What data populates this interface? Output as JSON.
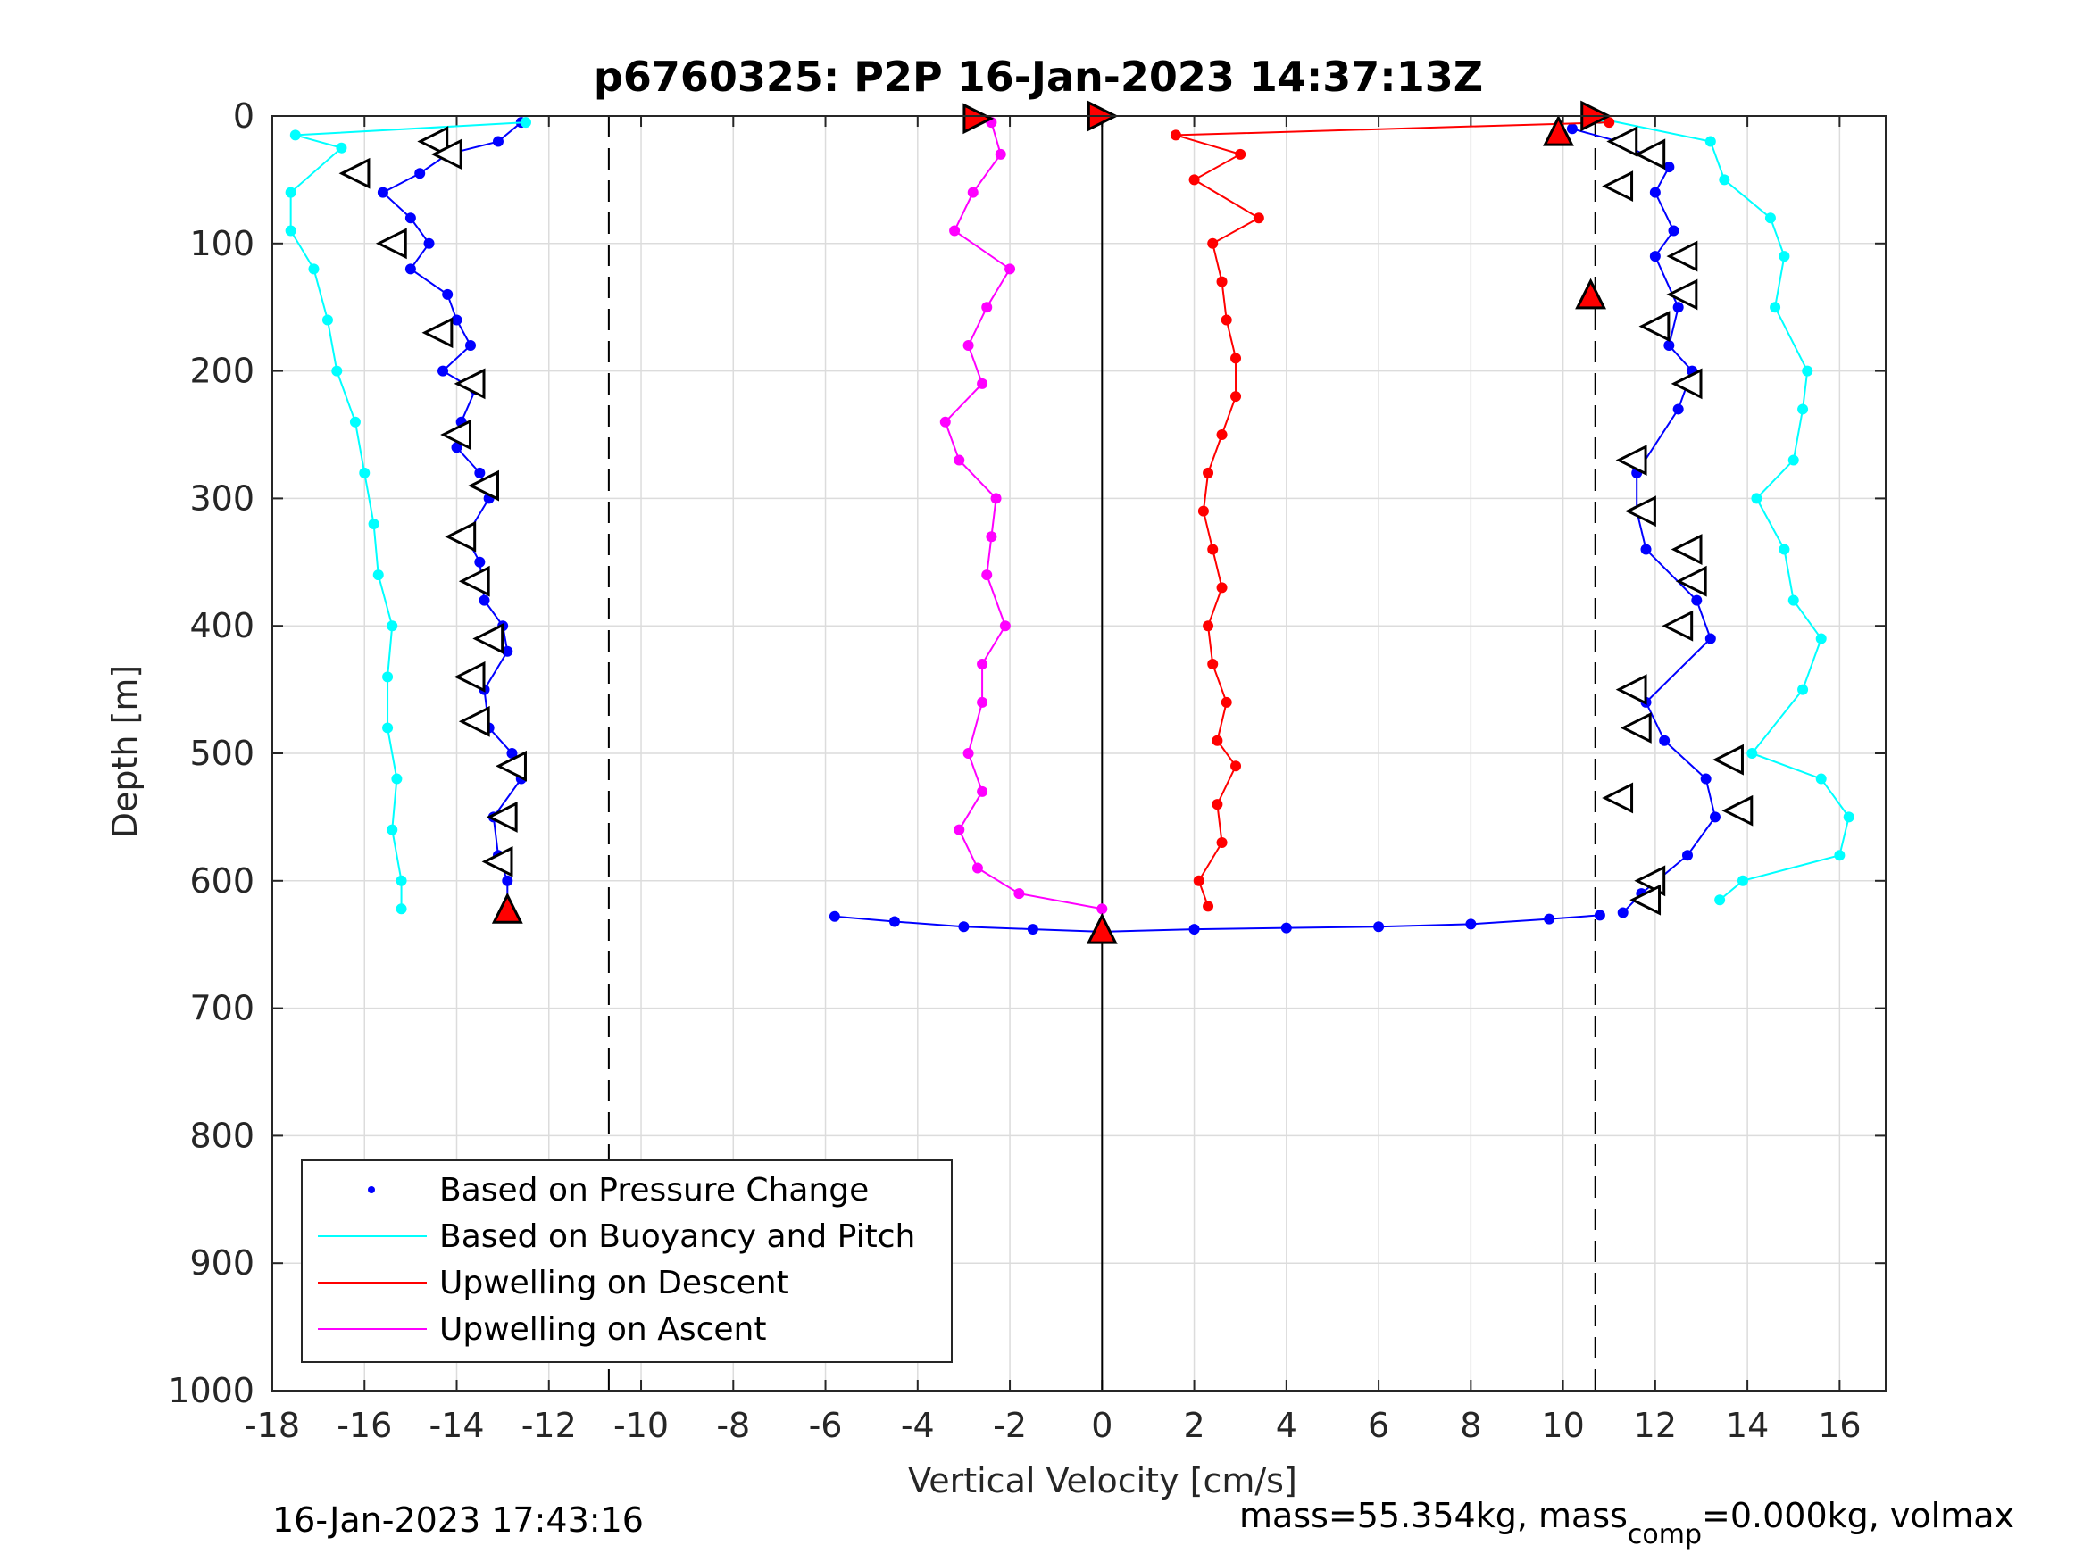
{
  "figure": {
    "title": "p6760325: P2P 16-Jan-2023 14:37:13Z",
    "footer_left": "16-Jan-2023 17:43:16",
    "footer_right": {
      "part1": "mass=55.354kg, mass",
      "subscript": "comp",
      "part2": "=0.000kg, volmax"
    }
  },
  "chart_data": {
    "type": "scatter",
    "title": "p6760325: P2P 16-Jan-2023 14:37:13Z",
    "xlabel": "Vertical Velocity [cm/s]",
    "ylabel": "Depth [m]",
    "xlim": [
      -18,
      17
    ],
    "ylim": [
      0,
      1000
    ],
    "y_reversed": true,
    "grid": true,
    "xticks": [
      -18,
      -16,
      -14,
      -12,
      -10,
      -8,
      -6,
      -4,
      -2,
      0,
      2,
      4,
      6,
      8,
      10,
      12,
      14,
      16
    ],
    "yticks": [
      0,
      100,
      200,
      300,
      400,
      500,
      600,
      700,
      800,
      900,
      1000
    ],
    "dashed_vlines": [
      -10.7,
      10.7
    ],
    "solid_vlines": [
      0
    ],
    "legend_position": "bottom-left",
    "legend": [
      {
        "label": "Based on Pressure Change",
        "color": "#0000ff",
        "marker": "dot"
      },
      {
        "label": "Based on Buoyancy and Pitch",
        "color": "#00ffff",
        "marker": "line"
      },
      {
        "label": "Upwelling on Descent",
        "color": "#ff0000",
        "marker": "line"
      },
      {
        "label": "Upwelling on Ascent",
        "color": "#ff00ff",
        "marker": "line"
      }
    ],
    "series": [
      {
        "name": "Based on Pressure Change (descent)",
        "color": "#0000ff",
        "points": [
          [
            -12.6,
            5
          ],
          [
            -13.1,
            20
          ],
          [
            -14.2,
            30
          ],
          [
            -14.8,
            45
          ],
          [
            -15.6,
            60
          ],
          [
            -15.0,
            80
          ],
          [
            -14.6,
            100
          ],
          [
            -15.0,
            120
          ],
          [
            -14.2,
            140
          ],
          [
            -14.0,
            160
          ],
          [
            -13.7,
            180
          ],
          [
            -14.3,
            200
          ],
          [
            -13.6,
            215
          ],
          [
            -13.9,
            240
          ],
          [
            -14.0,
            260
          ],
          [
            -13.5,
            280
          ],
          [
            -13.3,
            300
          ],
          [
            -13.8,
            330
          ],
          [
            -13.5,
            350
          ],
          [
            -13.4,
            380
          ],
          [
            -13.0,
            400
          ],
          [
            -12.9,
            420
          ],
          [
            -13.4,
            450
          ],
          [
            -13.3,
            480
          ],
          [
            -12.8,
            500
          ],
          [
            -12.6,
            520
          ],
          [
            -13.2,
            550
          ],
          [
            -13.1,
            580
          ],
          [
            -12.9,
            600
          ],
          [
            -12.9,
            620
          ]
        ]
      },
      {
        "name": "Based on Buoyancy and Pitch (descent)",
        "color": "#00ffff",
        "points": [
          [
            -12.5,
            5
          ],
          [
            -17.5,
            15
          ],
          [
            -16.5,
            25
          ],
          [
            -17.6,
            60
          ],
          [
            -17.6,
            90
          ],
          [
            -17.1,
            120
          ],
          [
            -16.8,
            160
          ],
          [
            -16.6,
            200
          ],
          [
            -16.2,
            240
          ],
          [
            -16.0,
            280
          ],
          [
            -15.8,
            320
          ],
          [
            -15.7,
            360
          ],
          [
            -15.4,
            400
          ],
          [
            -15.5,
            440
          ],
          [
            -15.5,
            480
          ],
          [
            -15.3,
            520
          ],
          [
            -15.4,
            560
          ],
          [
            -15.2,
            600
          ],
          [
            -15.2,
            622
          ]
        ]
      },
      {
        "name": "Based on Pressure Change (ascent)",
        "color": "#0000ff",
        "points": [
          [
            10.2,
            10
          ],
          [
            11.2,
            20
          ],
          [
            12.3,
            40
          ],
          [
            12.0,
            60
          ],
          [
            12.4,
            90
          ],
          [
            12.0,
            110
          ],
          [
            12.5,
            150
          ],
          [
            12.3,
            180
          ],
          [
            12.8,
            200
          ],
          [
            12.5,
            230
          ],
          [
            11.6,
            280
          ],
          [
            11.6,
            310
          ],
          [
            11.8,
            340
          ],
          [
            12.9,
            380
          ],
          [
            13.2,
            410
          ],
          [
            11.8,
            460
          ],
          [
            12.2,
            490
          ],
          [
            13.1,
            520
          ],
          [
            13.3,
            550
          ],
          [
            12.7,
            580
          ],
          [
            11.7,
            610
          ],
          [
            11.3,
            625
          ]
        ]
      },
      {
        "name": "Based on Buoyancy and Pitch (ascent)",
        "color": "#00ffff",
        "points": [
          [
            10.8,
            2
          ],
          [
            13.2,
            20
          ],
          [
            13.5,
            50
          ],
          [
            14.5,
            80
          ],
          [
            14.8,
            110
          ],
          [
            14.6,
            150
          ],
          [
            15.3,
            200
          ],
          [
            15.2,
            230
          ],
          [
            15.0,
            270
          ],
          [
            14.2,
            300
          ],
          [
            14.8,
            340
          ],
          [
            15.0,
            380
          ],
          [
            15.6,
            410
          ],
          [
            15.2,
            450
          ],
          [
            14.1,
            500
          ],
          [
            15.6,
            520
          ],
          [
            16.2,
            550
          ],
          [
            16.0,
            580
          ],
          [
            13.9,
            600
          ],
          [
            13.4,
            615
          ]
        ]
      },
      {
        "name": "Upwelling on Descent",
        "color": "#ff0000",
        "points": [
          [
            11.0,
            5
          ],
          [
            1.6,
            15
          ],
          [
            3.0,
            30
          ],
          [
            2.0,
            50
          ],
          [
            3.4,
            80
          ],
          [
            2.4,
            100
          ],
          [
            2.6,
            130
          ],
          [
            2.7,
            160
          ],
          [
            2.9,
            190
          ],
          [
            2.9,
            220
          ],
          [
            2.6,
            250
          ],
          [
            2.3,
            280
          ],
          [
            2.2,
            310
          ],
          [
            2.4,
            340
          ],
          [
            2.6,
            370
          ],
          [
            2.3,
            400
          ],
          [
            2.4,
            430
          ],
          [
            2.7,
            460
          ],
          [
            2.5,
            490
          ],
          [
            2.9,
            510
          ],
          [
            2.5,
            540
          ],
          [
            2.6,
            570
          ],
          [
            2.1,
            600
          ],
          [
            2.3,
            620
          ]
        ]
      },
      {
        "name": "Upwelling on Ascent",
        "color": "#ff00ff",
        "points": [
          [
            -2.4,
            5
          ],
          [
            -2.2,
            30
          ],
          [
            -2.8,
            60
          ],
          [
            -3.2,
            90
          ],
          [
            -2.0,
            120
          ],
          [
            -2.5,
            150
          ],
          [
            -2.9,
            180
          ],
          [
            -2.6,
            210
          ],
          [
            -3.4,
            240
          ],
          [
            -3.1,
            270
          ],
          [
            -2.3,
            300
          ],
          [
            -2.4,
            330
          ],
          [
            -2.5,
            360
          ],
          [
            -2.1,
            400
          ],
          [
            -2.6,
            430
          ],
          [
            -2.6,
            460
          ],
          [
            -2.9,
            500
          ],
          [
            -2.6,
            530
          ],
          [
            -3.1,
            560
          ],
          [
            -2.7,
            590
          ],
          [
            -1.8,
            610
          ],
          [
            0.0,
            622
          ]
        ]
      },
      {
        "name": "Based on Pressure Change (bottom)",
        "color": "#0000ff",
        "points": [
          [
            -5.8,
            628
          ],
          [
            -4.5,
            632
          ],
          [
            -3.0,
            636
          ],
          [
            -1.5,
            638
          ],
          [
            0.0,
            640
          ],
          [
            2.0,
            638
          ],
          [
            4.0,
            637
          ],
          [
            6.0,
            636
          ],
          [
            8.0,
            634
          ],
          [
            9.7,
            630
          ],
          [
            10.8,
            627
          ]
        ]
      }
    ],
    "markers": [
      {
        "shape": "triangle-right",
        "fill": "#ff0000",
        "points": [
          [
            -2.7,
            2
          ],
          [
            0.0,
            0
          ],
          [
            10.7,
            0
          ]
        ]
      },
      {
        "shape": "triangle-left",
        "fill": "#ffffff",
        "points": [
          [
            -14.5,
            20
          ],
          [
            -16.2,
            45
          ],
          [
            -14.2,
            30
          ],
          [
            -15.4,
            100
          ],
          [
            -14.4,
            170
          ],
          [
            -13.7,
            210
          ],
          [
            -14.0,
            250
          ],
          [
            -13.4,
            290
          ],
          [
            -13.9,
            330
          ],
          [
            -13.6,
            365
          ],
          [
            -13.3,
            410
          ],
          [
            -13.7,
            440
          ],
          [
            -13.6,
            475
          ],
          [
            -12.8,
            510
          ],
          [
            -13.0,
            550
          ],
          [
            -13.1,
            585
          ],
          [
            11.3,
            20
          ],
          [
            11.9,
            30
          ],
          [
            11.2,
            55
          ],
          [
            12.6,
            110
          ],
          [
            12.6,
            140
          ],
          [
            12.0,
            165
          ],
          [
            12.7,
            210
          ],
          [
            11.5,
            270
          ],
          [
            11.7,
            310
          ],
          [
            12.7,
            340
          ],
          [
            12.8,
            365
          ],
          [
            12.5,
            400
          ],
          [
            11.5,
            450
          ],
          [
            11.6,
            480
          ],
          [
            13.6,
            505
          ],
          [
            11.2,
            535
          ],
          [
            13.8,
            545
          ],
          [
            11.9,
            600
          ],
          [
            11.8,
            615
          ]
        ]
      },
      {
        "shape": "triangle-up",
        "fill": "#ff0000",
        "points": [
          [
            -12.9,
            622
          ],
          [
            9.9,
            12
          ],
          [
            10.6,
            140
          ],
          [
            0.0,
            638
          ]
        ]
      }
    ]
  }
}
